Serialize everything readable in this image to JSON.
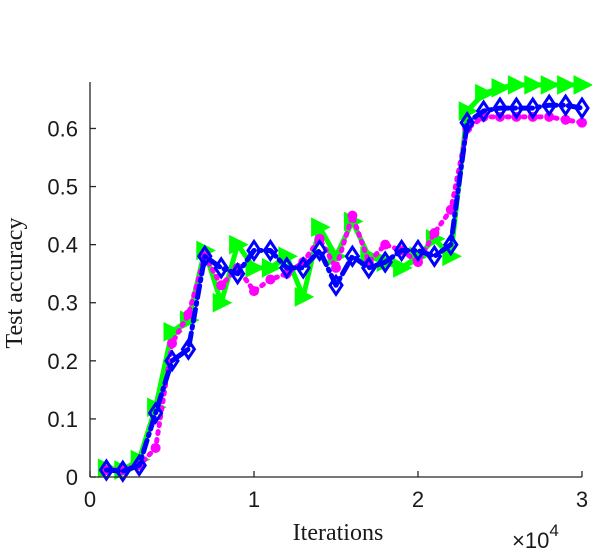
{
  "chart_data": {
    "type": "line",
    "xlabel": "Iterations",
    "ylabel": "Test accuracy",
    "x_multiplier": {
      "prefix": "×10",
      "exponent": "4"
    },
    "xlim": [
      0,
      3
    ],
    "ylim": [
      0,
      0.68
    ],
    "xticks": [
      0,
      1,
      2,
      3
    ],
    "xtick_labels": [
      "0",
      "1",
      "2",
      "3"
    ],
    "yticks": [
      0,
      0.1,
      0.2,
      0.3,
      0.4,
      0.5,
      0.6
    ],
    "ytick_labels": [
      "0",
      "0.1",
      "0.2",
      "0.3",
      "0.4",
      "0.5",
      "0.6"
    ],
    "grid": false,
    "x": [
      0.1,
      0.2,
      0.3,
      0.4,
      0.5,
      0.6,
      0.7,
      0.8,
      0.9,
      1.0,
      1.1,
      1.2,
      1.3,
      1.4,
      1.5,
      1.6,
      1.7,
      1.8,
      1.9,
      2.0,
      2.1,
      2.2,
      2.3,
      2.4,
      2.5,
      2.6,
      2.7,
      2.8,
      2.9,
      3.0
    ],
    "series": [
      {
        "color": "#00ff00",
        "marker": "triangle-right",
        "line": "solid",
        "values": [
          0.015,
          0.012,
          0.03,
          0.12,
          0.25,
          0.27,
          0.39,
          0.3,
          0.4,
          0.36,
          0.36,
          0.38,
          0.31,
          0.43,
          0.38,
          0.44,
          0.38,
          0.37,
          0.36,
          0.38,
          0.41,
          0.38,
          0.63,
          0.66,
          0.67,
          0.675,
          0.675,
          0.675,
          0.675,
          0.675
        ]
      },
      {
        "color": "#ff00ff",
        "marker": "circle",
        "line": "dotted",
        "values": [
          0.012,
          0.012,
          0.02,
          0.05,
          0.23,
          0.28,
          0.38,
          0.33,
          0.36,
          0.32,
          0.34,
          0.35,
          0.37,
          0.41,
          0.36,
          0.45,
          0.37,
          0.4,
          0.39,
          0.37,
          0.42,
          0.46,
          0.6,
          0.62,
          0.62,
          0.62,
          0.62,
          0.62,
          0.615,
          0.61
        ]
      },
      {
        "color": "#0000ff",
        "marker": "diamond",
        "line": "dash-dot",
        "values": [
          0.012,
          0.01,
          0.02,
          0.11,
          0.2,
          0.22,
          0.38,
          0.36,
          0.35,
          0.39,
          0.39,
          0.36,
          0.36,
          0.39,
          0.33,
          0.38,
          0.36,
          0.37,
          0.39,
          0.39,
          0.38,
          0.4,
          0.61,
          0.63,
          0.635,
          0.635,
          0.635,
          0.64,
          0.64,
          0.635
        ]
      }
    ]
  }
}
